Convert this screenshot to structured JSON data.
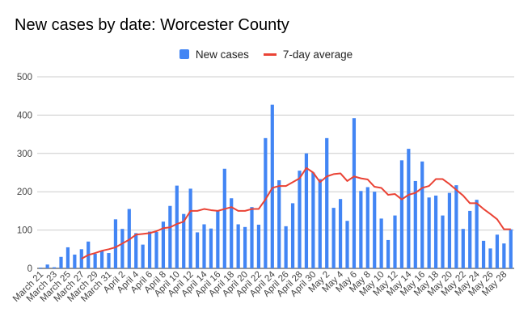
{
  "chart_data": {
    "type": "bar",
    "title": "New cases by date: Worcester County",
    "xlabel": "",
    "ylabel": "",
    "ylim": [
      0,
      500
    ],
    "yticks": [
      0,
      100,
      200,
      300,
      400,
      500
    ],
    "grid": true,
    "legend_position": "top-center",
    "categories": [
      "March 21",
      "March 22",
      "March 23",
      "March 24",
      "March 25",
      "March 26",
      "March 27",
      "March 28",
      "March 29",
      "March 30",
      "March 31",
      "April 1",
      "April 2",
      "April 3",
      "April 4",
      "April 5",
      "April 6",
      "April 7",
      "April 8",
      "April 9",
      "April 10",
      "April 11",
      "April 12",
      "April 13",
      "April 14",
      "April 15",
      "April 16",
      "April 17",
      "April 18",
      "April 19",
      "April 20",
      "April 21",
      "April 22",
      "April 23",
      "April 24",
      "April 25",
      "April 26",
      "April 27",
      "April 28",
      "April 29",
      "April 30",
      "May 1",
      "May 2",
      "May 3",
      "May 4",
      "May 5",
      "May 6",
      "May 7",
      "May 8",
      "May 9",
      "May 10",
      "May 11",
      "May 12",
      "May 13",
      "May 14",
      "May 15",
      "May 16",
      "May 17",
      "May 18",
      "May 19",
      "May 20",
      "May 21",
      "May 22",
      "May 23",
      "May 24",
      "May 25",
      "May 26",
      "May 27",
      "May 28",
      "May 29"
    ],
    "tick_labels": [
      "March 21",
      "March 23",
      "March 25",
      "March 27",
      "March 29",
      "March 31",
      "April 2",
      "April 4",
      "April 6",
      "April 8",
      "April 10",
      "April 12",
      "April 14",
      "April 16",
      "April 18",
      "April 20",
      "April 22",
      "April 24",
      "April 26",
      "April 28",
      "April 30",
      "May 2",
      "May 4",
      "May 6",
      "May 8",
      "May 10",
      "May 12",
      "May 14",
      "May 16",
      "May 18",
      "May 20",
      "May 22",
      "May 24",
      "May 26",
      "May 28"
    ],
    "series": [
      {
        "name": "New cases",
        "kind": "bar",
        "color": "#4285f4",
        "values": [
          2,
          10,
          3,
          30,
          55,
          36,
          50,
          70,
          38,
          46,
          40,
          128,
          103,
          155,
          92,
          62,
          96,
          95,
          122,
          163,
          216,
          142,
          208,
          94,
          115,
          104,
          150,
          260,
          183,
          115,
          108,
          160,
          114,
          340,
          427,
          230,
          110,
          170,
          255,
          300,
          250,
          233,
          340,
          158,
          181,
          124,
          392,
          202,
          212,
          200,
          130,
          74,
          138,
          282,
          312,
          228,
          279,
          185,
          190,
          138,
          197,
          217,
          103,
          150,
          179,
          72,
          52,
          88,
          65,
          102
        ]
      },
      {
        "name": "7-day average",
        "kind": "line",
        "color": "#ea4335",
        "values": [
          null,
          null,
          null,
          null,
          null,
          null,
          25,
          35,
          40,
          46,
          50,
          55,
          65,
          75,
          88,
          90,
          92,
          97,
          105,
          107,
          116,
          122,
          150,
          150,
          155,
          152,
          150,
          155,
          160,
          150,
          150,
          155,
          155,
          180,
          210,
          215,
          215,
          225,
          235,
          262,
          250,
          225,
          240,
          246,
          248,
          228,
          240,
          235,
          232,
          213,
          210,
          192,
          194,
          180,
          192,
          197,
          210,
          215,
          233,
          233,
          220,
          205,
          190,
          170,
          170,
          155,
          142,
          128,
          102,
          102
        ]
      }
    ]
  }
}
